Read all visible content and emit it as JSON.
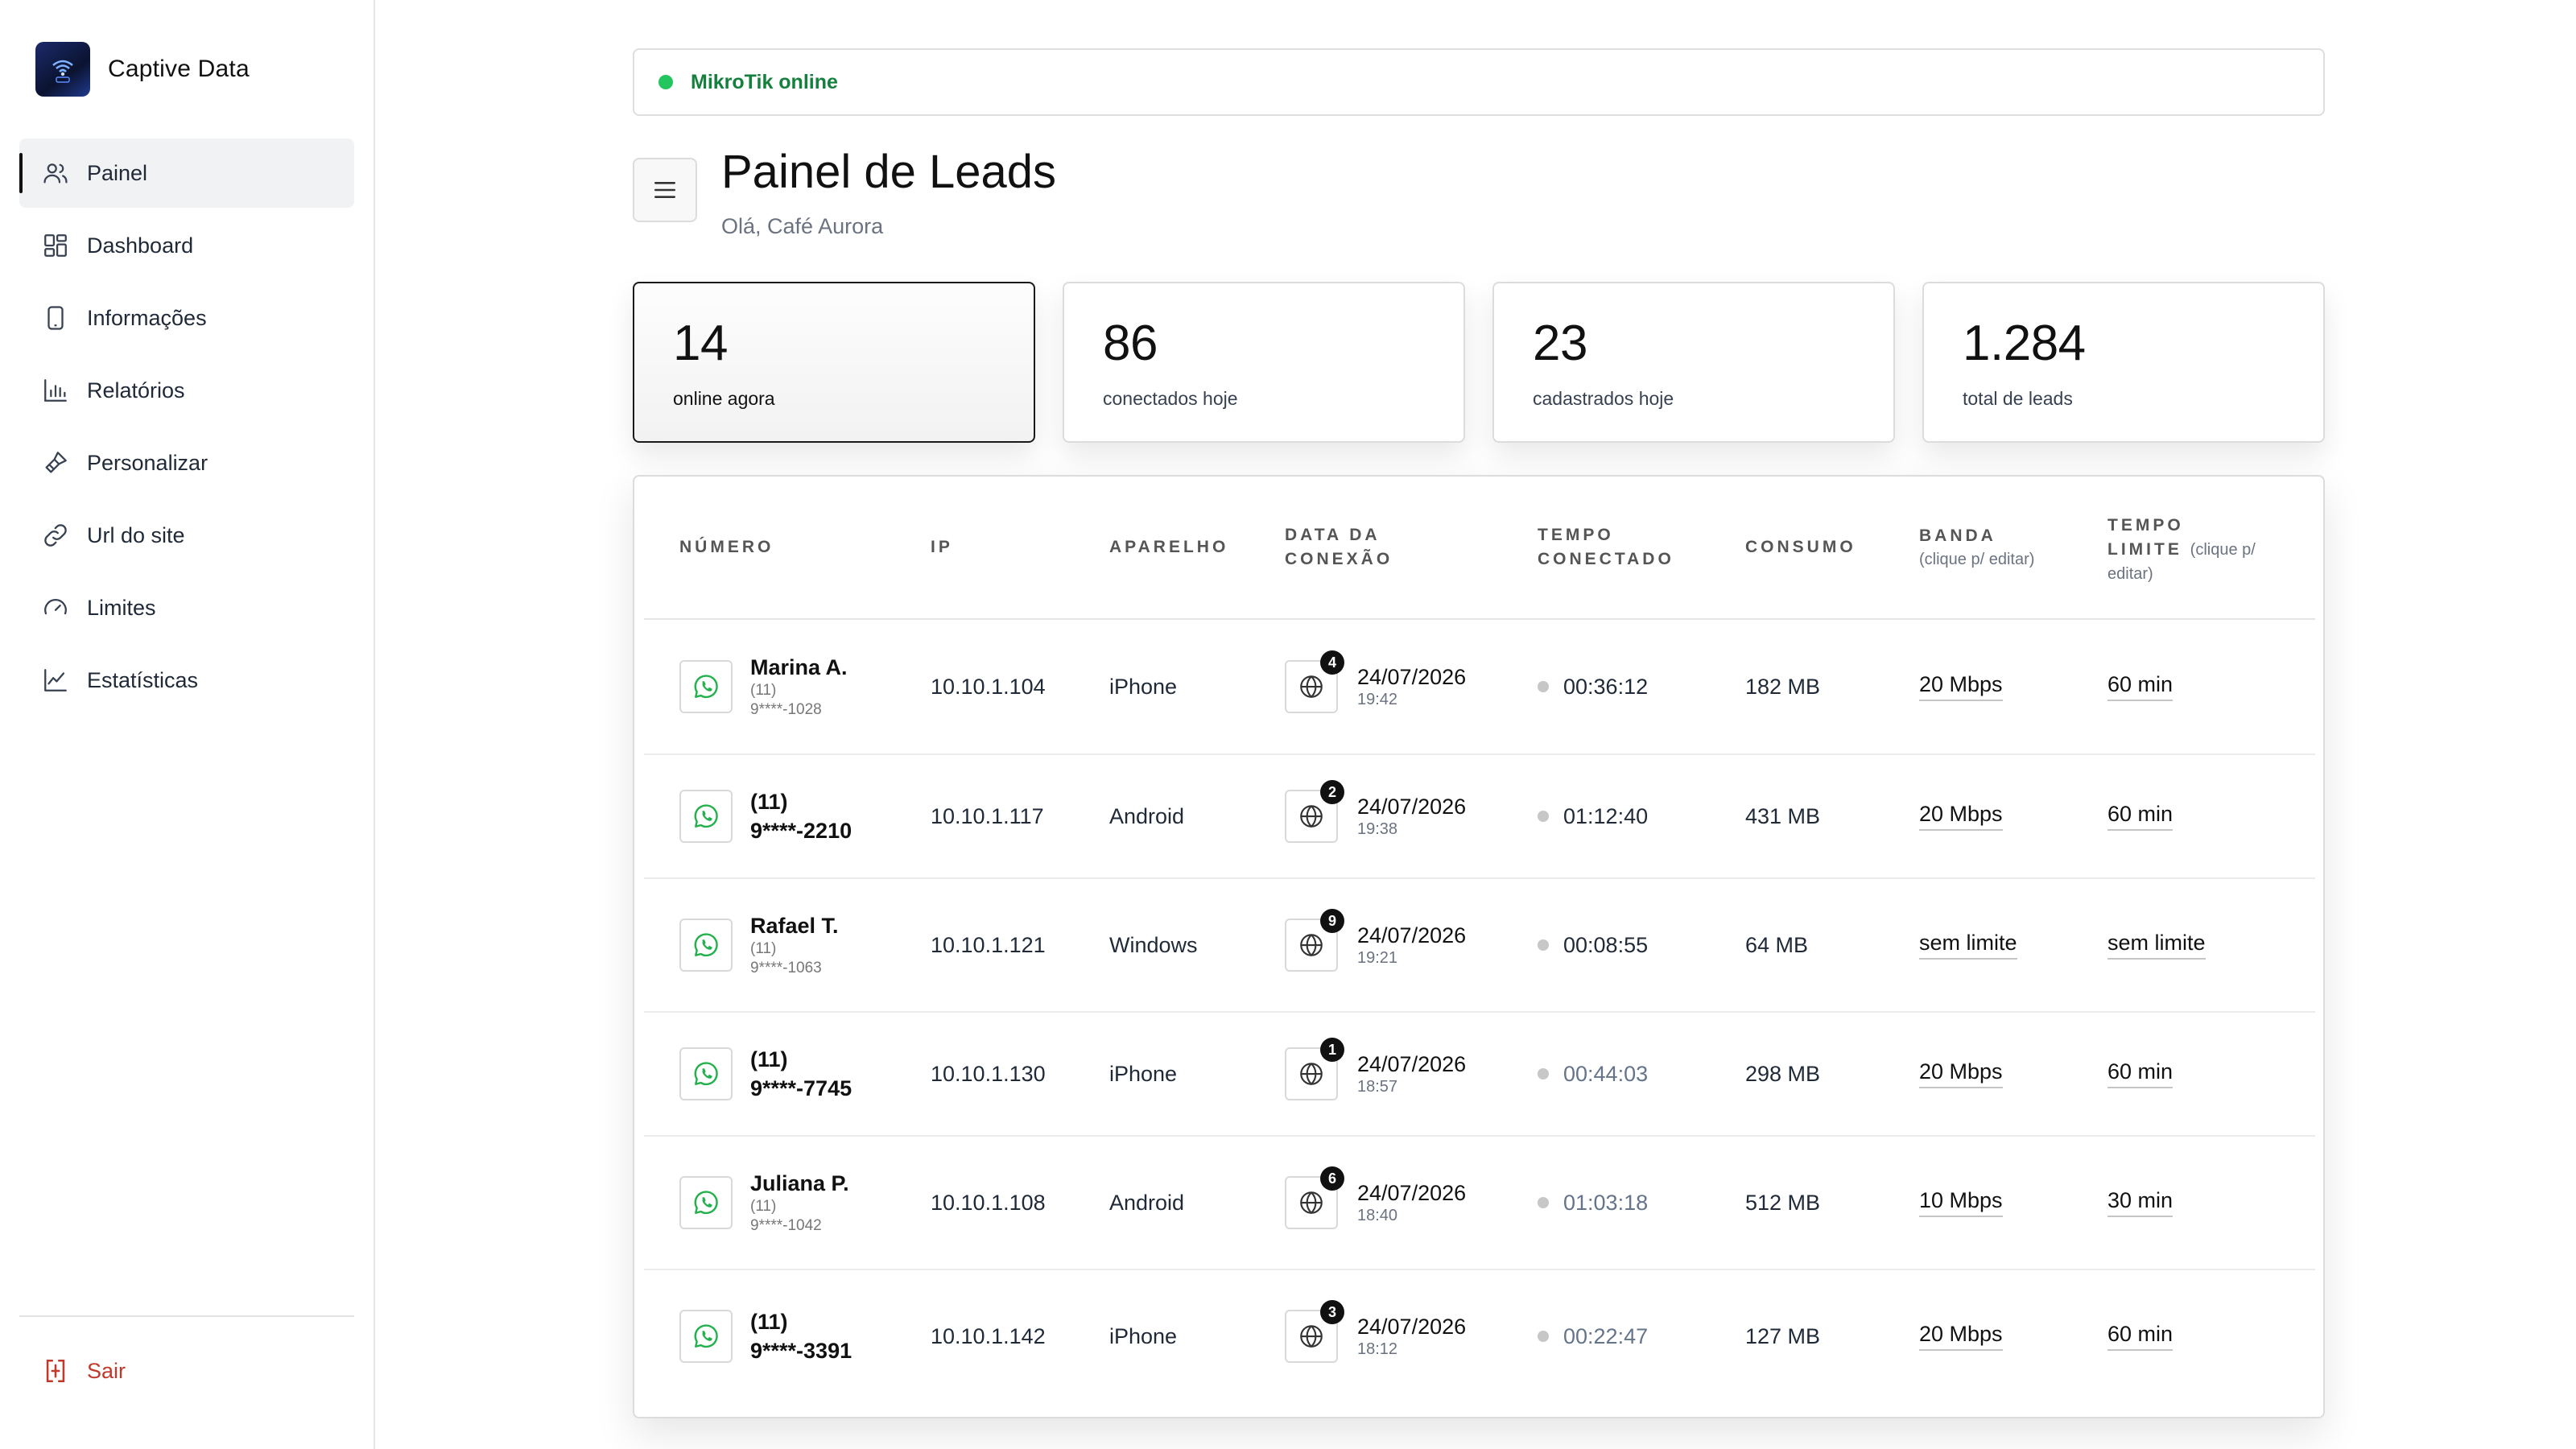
{
  "app": {
    "name": "Captive Data"
  },
  "sidebar": {
    "items": [
      {
        "label": "Painel",
        "icon": "users-icon",
        "active": true
      },
      {
        "label": "Dashboard",
        "icon": "grid-icon",
        "active": false
      },
      {
        "label": "Informações",
        "icon": "phone-icon",
        "active": false
      },
      {
        "label": "Relatórios",
        "icon": "bar-chart-icon",
        "active": false
      },
      {
        "label": "Personalizar",
        "icon": "brush-icon",
        "active": false
      },
      {
        "label": "Url do site",
        "icon": "link-icon",
        "active": false
      },
      {
        "label": "Limites",
        "icon": "gauge-icon",
        "active": false
      },
      {
        "label": "Estatísticas",
        "icon": "line-chart-icon",
        "active": false
      }
    ],
    "logout_label": "Sair"
  },
  "status": {
    "text": "MikroTik online",
    "color": "#22c55e"
  },
  "header": {
    "title": "Painel de Leads",
    "subtitle": "Olá, Café Aurora"
  },
  "stats": [
    {
      "value": "14",
      "label": "online agora",
      "active": true
    },
    {
      "value": "86",
      "label": "conectados hoje",
      "active": false
    },
    {
      "value": "23",
      "label": "cadastrados hoje",
      "active": false
    },
    {
      "value": "1.284",
      "label": "total de leads",
      "active": false
    }
  ],
  "table": {
    "columns": {
      "numero": "NÚMERO",
      "ip": "IP",
      "aparelho": "APARELHO",
      "data_l1": "DATA DA",
      "data_l2": "CONEXÃO",
      "tempo_l1": "TEMPO",
      "tempo_l2": "CONECTADO",
      "consumo": "CONSUMO",
      "banda": "BANDA",
      "banda_note": "(clique p/ editar)",
      "limite_l1": "TEMPO",
      "limite_l2": "LIMITE",
      "limite_note": "(clique p/ editar)"
    },
    "rows": [
      {
        "name": "Marina A.",
        "area": "(11)",
        "phone": "9****-1028",
        "ip": "10.10.1.104",
        "device": "iPhone",
        "visits": "4",
        "date": "24/07/2026",
        "time": "19:42",
        "connected": "00:36:12",
        "muted": false,
        "usage": "182 MB",
        "bandwidth": "20 Mbps",
        "limit": "60 min"
      },
      {
        "name": "",
        "area": "(11)",
        "phone": "9****-2210",
        "ip": "10.10.1.117",
        "device": "Android",
        "visits": "2",
        "date": "24/07/2026",
        "time": "19:38",
        "connected": "01:12:40",
        "muted": false,
        "usage": "431 MB",
        "bandwidth": "20 Mbps",
        "limit": "60 min"
      },
      {
        "name": "Rafael T.",
        "area": "(11)",
        "phone": "9****-1063",
        "ip": "10.10.1.121",
        "device": "Windows",
        "visits": "9",
        "date": "24/07/2026",
        "time": "19:21",
        "connected": "00:08:55",
        "muted": false,
        "usage": "64 MB",
        "bandwidth": "sem limite",
        "limit": "sem limite"
      },
      {
        "name": "",
        "area": "(11)",
        "phone": "9****-7745",
        "ip": "10.10.1.130",
        "device": "iPhone",
        "visits": "1",
        "date": "24/07/2026",
        "time": "18:57",
        "connected": "00:44:03",
        "muted": true,
        "usage": "298 MB",
        "bandwidth": "20 Mbps",
        "limit": "60 min"
      },
      {
        "name": "Juliana P.",
        "area": "(11)",
        "phone": "9****-1042",
        "ip": "10.10.1.108",
        "device": "Android",
        "visits": "6",
        "date": "24/07/2026",
        "time": "18:40",
        "connected": "01:03:18",
        "muted": true,
        "usage": "512 MB",
        "bandwidth": "10 Mbps",
        "limit": "30 min"
      },
      {
        "name": "",
        "area": "(11)",
        "phone": "9****-3391",
        "ip": "10.10.1.142",
        "device": "iPhone",
        "visits": "3",
        "date": "24/07/2026",
        "time": "18:12",
        "connected": "00:22:47",
        "muted": true,
        "usage": "127 MB",
        "bandwidth": "20 Mbps",
        "limit": "60 min"
      }
    ]
  }
}
